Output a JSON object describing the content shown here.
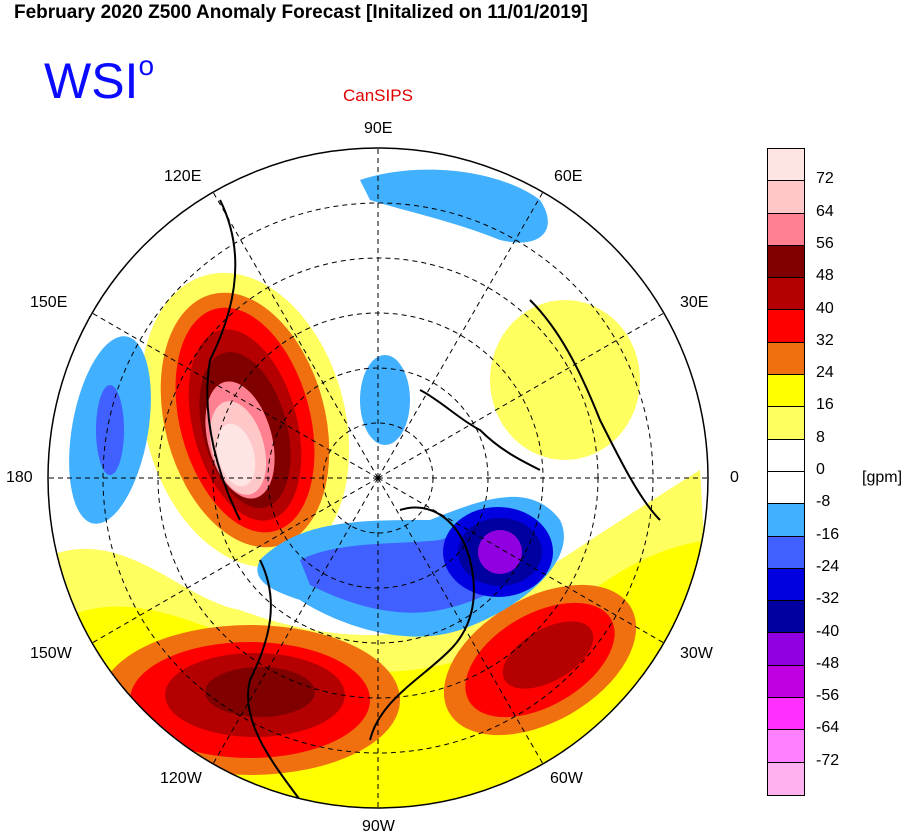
{
  "title": "February 2020 Z500 Anomaly Forecast [Initalized on 11/01/2019]",
  "logo": {
    "text": "WSI",
    "superscript": "o"
  },
  "model": "CanSIPS",
  "longitude_labels": [
    "90E",
    "60E",
    "30E",
    "0",
    "30W",
    "60W",
    "90W",
    "120W",
    "150W",
    "180",
    "150E",
    "120E"
  ],
  "colorbar": {
    "unit": "[gpm]",
    "labels": [
      "72",
      "64",
      "56",
      "48",
      "40",
      "32",
      "24",
      "16",
      "8",
      "0",
      "-8",
      "-16",
      "-24",
      "-32",
      "-40",
      "-48",
      "-56",
      "-64",
      "-72"
    ],
    "colors": [
      "#ffe4e4",
      "#ffc8c8",
      "#ff8090",
      "#800000",
      "#b40000",
      "#ff0000",
      "#f07010",
      "#ffff00",
      "#ffff60",
      "#ffffff",
      "#ffffff",
      "#40b0ff",
      "#4060ff",
      "#0000e0",
      "#0000a0",
      "#9000e0",
      "#c000e0",
      "#ff30ff",
      "#ff80ff",
      "#ffb0ee"
    ]
  },
  "colors": {
    "title": "#000000",
    "logo": "#0a0aff",
    "model": "#e00000"
  }
}
